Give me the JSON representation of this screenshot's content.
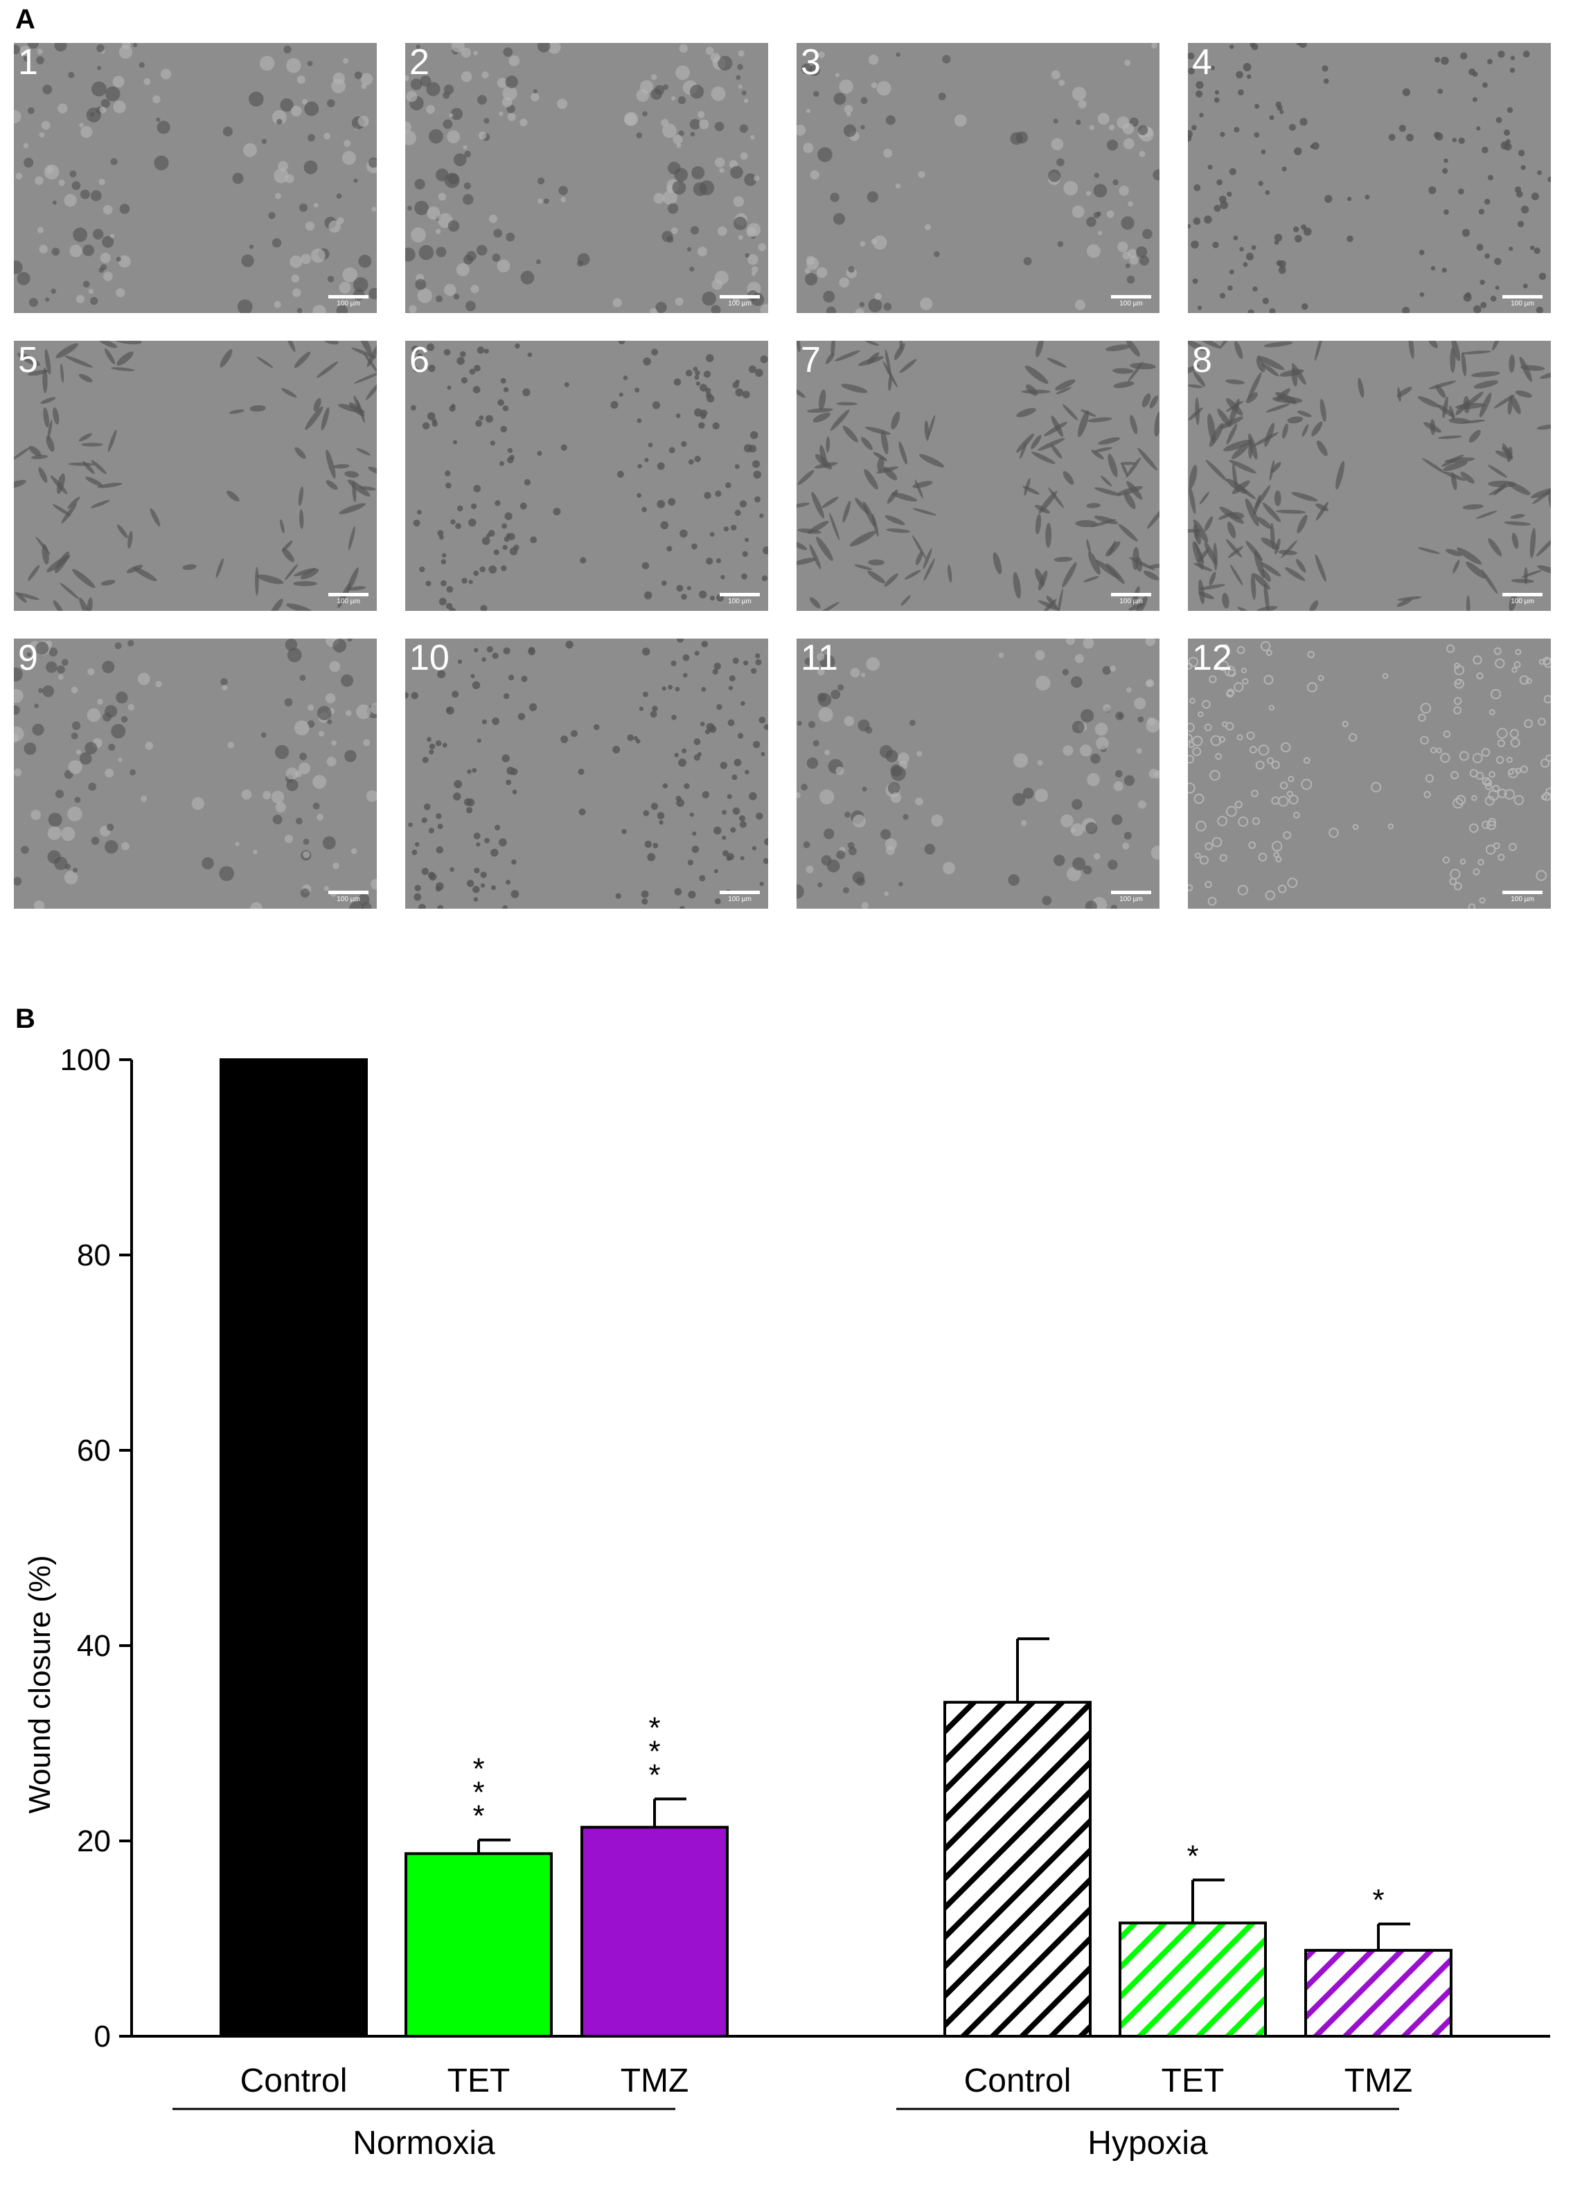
{
  "panelA": {
    "letter": "A",
    "tiles": [
      {
        "label": "1",
        "scale": "100 µm",
        "density": 0.55,
        "shape": "clumps"
      },
      {
        "label": "2",
        "scale": "100 µm",
        "density": 0.75,
        "shape": "clumps"
      },
      {
        "label": "3",
        "scale": "100 µm",
        "density": 0.3,
        "shape": "clumps"
      },
      {
        "label": "4",
        "scale": "100 µm",
        "density": 0.55,
        "shape": "dots"
      },
      {
        "label": "5",
        "scale": "100 µm",
        "density": 0.3,
        "shape": "spindle"
      },
      {
        "label": "6",
        "scale": "100 µm",
        "density": 0.7,
        "shape": "dots"
      },
      {
        "label": "7",
        "scale": "100 µm",
        "density": 0.6,
        "shape": "spindle"
      },
      {
        "label": "8",
        "scale": "100 µm",
        "density": 0.8,
        "shape": "spindle"
      },
      {
        "label": "9",
        "scale": "100 µm",
        "density": 0.5,
        "shape": "clumps"
      },
      {
        "label": "10",
        "scale": "100 µm",
        "density": 0.75,
        "shape": "dots"
      },
      {
        "label": "11",
        "scale": "100 µm",
        "density": 0.45,
        "shape": "clumps"
      },
      {
        "label": "12",
        "scale": "100 µm",
        "density": 0.7,
        "shape": "rings"
      }
    ],
    "colors": {
      "background": "#8d8d8d",
      "cell": "#555555",
      "cell_light": "#b4b4b4",
      "label": "#ffffff"
    }
  },
  "chart_data": {
    "type": "bar",
    "panel_letter": "B",
    "ylabel": "Wound closure (%)",
    "ylim": [
      0,
      100
    ],
    "yticks": [
      0,
      20,
      40,
      60,
      80,
      100
    ],
    "categories": [
      "Control",
      "TET",
      "TMZ",
      "Control",
      "TET",
      "TMZ"
    ],
    "values": [
      100,
      18.7,
      21.4,
      34.2,
      11.6,
      8.8
    ],
    "errors": [
      0,
      1.4,
      2.9,
      6.5,
      4.4,
      2.7
    ],
    "significance": [
      "",
      "***",
      "***",
      "",
      "*",
      "*"
    ],
    "fills": [
      "solid",
      "solid",
      "solid",
      "hatch",
      "hatch",
      "hatch"
    ],
    "colors": [
      "#000000",
      "#00ff00",
      "#9b0fcf",
      "#000000",
      "#00ff00",
      "#9b0fcf"
    ],
    "groups": [
      {
        "label": "Normoxia",
        "members": [
          0,
          1,
          2
        ]
      },
      {
        "label": "Hypoxia",
        "members": [
          3,
          4,
          5
        ]
      }
    ],
    "grid": false,
    "legend": "none"
  }
}
